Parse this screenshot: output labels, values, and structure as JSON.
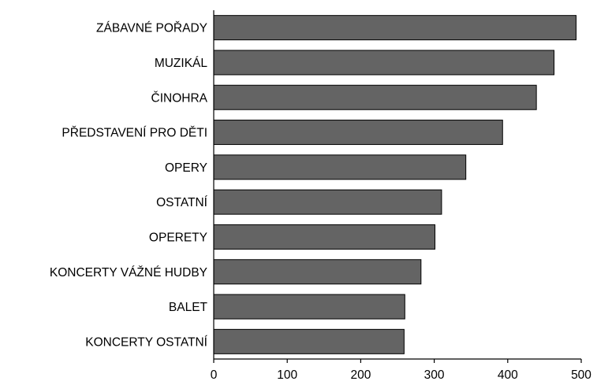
{
  "chart_data": {
    "type": "bar",
    "orientation": "horizontal",
    "categories": [
      "ZÁBAVNÉ POŘADY",
      "MUZIKÁL",
      "ČINOHRA",
      "PŘEDSTAVENÍ PRO DĚTI",
      "OPERY",
      "OSTATNÍ",
      "OPERETY",
      "KONCERTY VÁŽNÉ HUDBY",
      "BALET",
      "KONCERTY OSTATNÍ"
    ],
    "values": [
      493,
      463,
      439,
      393,
      343,
      310,
      301,
      282,
      260,
      259
    ],
    "xlim": [
      0,
      500
    ],
    "xticks": [
      0,
      100,
      200,
      300,
      400,
      500
    ],
    "xtick_labels": [
      "0",
      "100",
      "200",
      "300",
      "400",
      "500"
    ],
    "title": "",
    "xlabel": "",
    "ylabel": "",
    "grid": false,
    "legend": "none",
    "bar_color": "#646464",
    "bar_edge_color": "#000000"
  }
}
